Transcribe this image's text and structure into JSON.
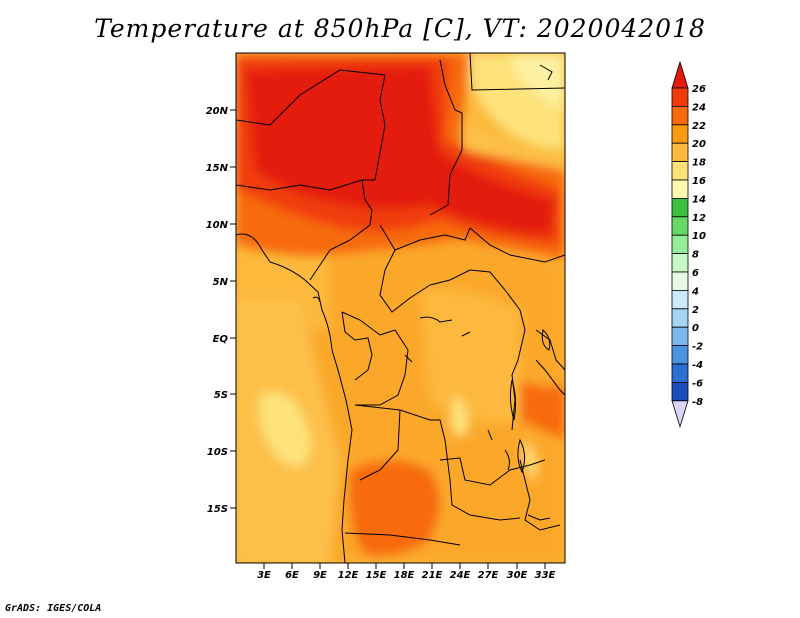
{
  "title": "Temperature at 850hPa [C], VT: 2020042018",
  "credit": "GrADS: IGES/COLA",
  "lat_labels": [
    "20N",
    "15N",
    "10N",
    "5N",
    "EQ",
    "5S",
    "10S",
    "15S"
  ],
  "lon_labels": [
    "3E",
    "6E",
    "9E",
    "12E",
    "15E",
    "18E",
    "21E",
    "24E",
    "27E",
    "30E",
    "33E"
  ],
  "colorbar": {
    "labels": [
      "26",
      "24",
      "22",
      "20",
      "18",
      "16",
      "14",
      "12",
      "10",
      "8",
      "6",
      "4",
      "2",
      "0",
      "-2",
      "-4",
      "-6",
      "-8"
    ],
    "colors": [
      "#e41a0f",
      "#f03c0c",
      "#f76a0e",
      "#fa9b14",
      "#fcb93c",
      "#fde27a",
      "#fdf8b0",
      "#3fbf3f",
      "#67d867",
      "#97ec97",
      "#c8f7c8",
      "#e6fbe6",
      "#cde8f8",
      "#a6d4f4",
      "#7ab7ee",
      "#4c94e2",
      "#2d6fd2",
      "#1d4ebd",
      "#123a9e",
      "#0a1a70",
      "#d9d4f2"
    ]
  }
}
